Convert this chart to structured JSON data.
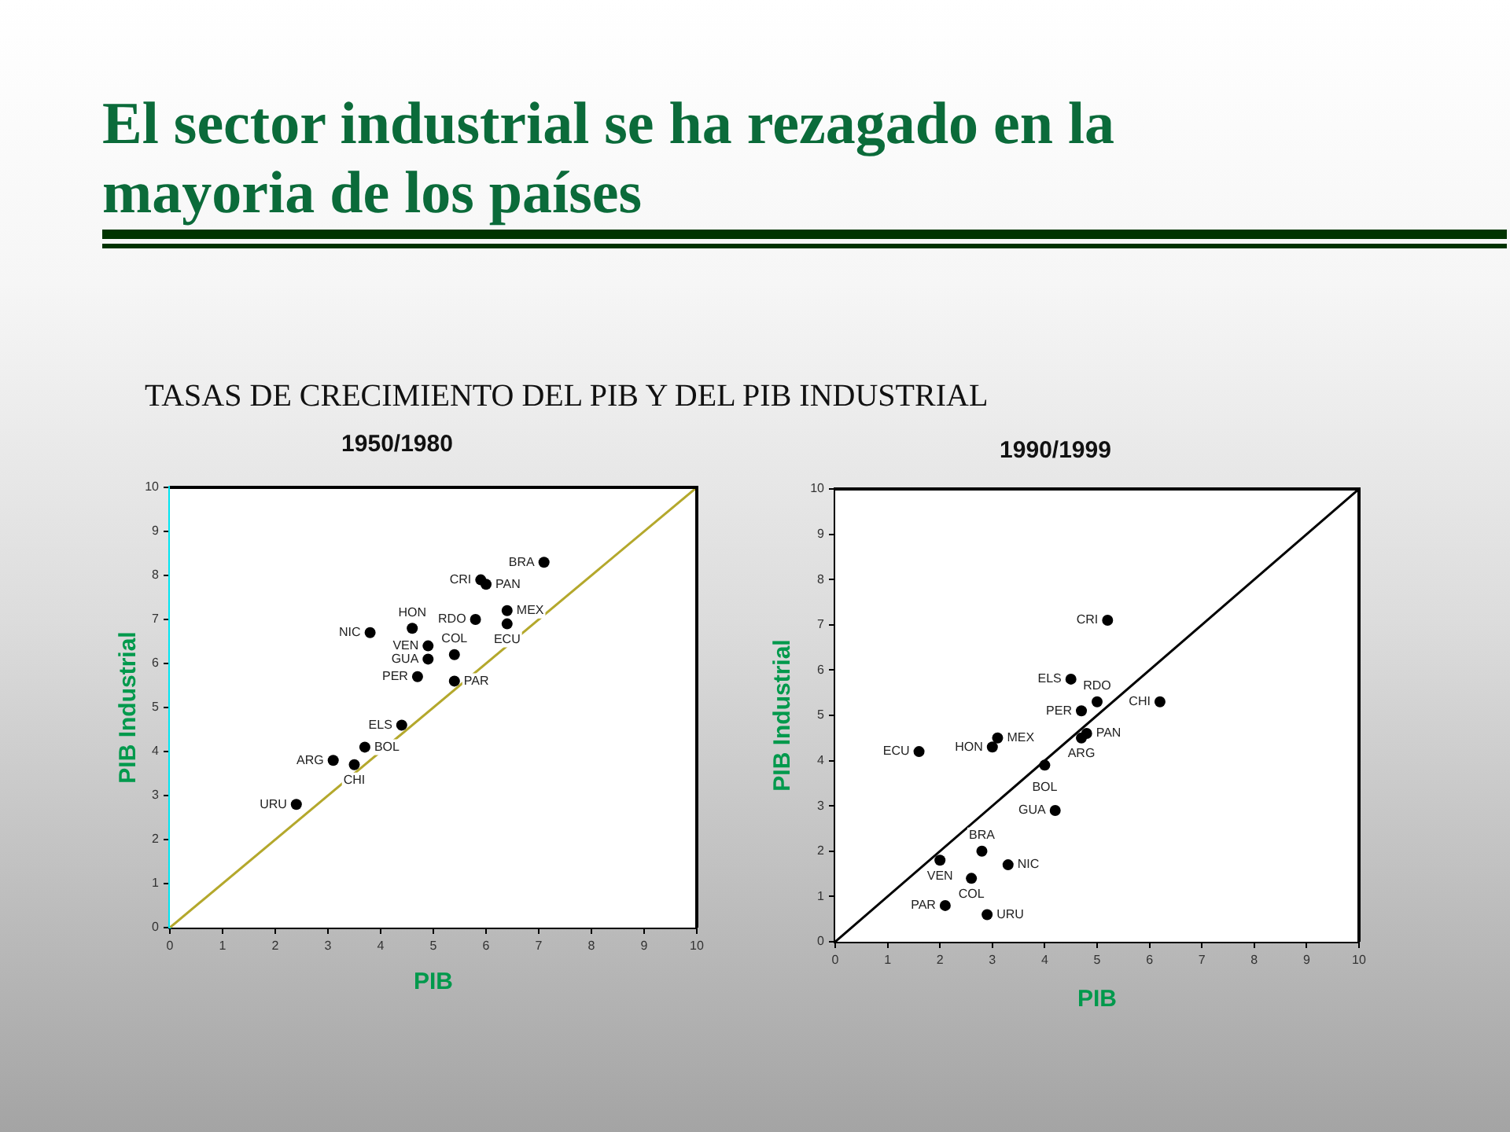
{
  "chart_data": [
    {
      "type": "other",
      "title": "El sector industrial se ha rezagado en la mayoria de los países",
      "subtitle": "TASAS DE CRECIMIENTO DEL PIB Y DEL PIB INDUSTRIAL"
    },
    {
      "type": "scatter",
      "title": "1950/1980",
      "xlabel": "PIB",
      "ylabel": "PIB Industrial",
      "xlim": [
        0,
        10
      ],
      "ylim": [
        0,
        10
      ],
      "xticks": [
        0,
        1,
        2,
        3,
        4,
        5,
        6,
        7,
        8,
        9,
        10
      ],
      "yticks": [
        0,
        1,
        2,
        3,
        4,
        5,
        6,
        7,
        8,
        9,
        10
      ],
      "series": [
        {
          "type": "scatter",
          "color": "#000000",
          "marker": "circle",
          "x": [
            7.1,
            5.9,
            6.0,
            6.4,
            6.4,
            5.8,
            4.6,
            3.8,
            4.9,
            5.4,
            4.9,
            4.7,
            5.4,
            4.4,
            3.7,
            3.1,
            3.5,
            2.4
          ],
          "values": [
            8.3,
            7.9,
            7.8,
            7.2,
            6.9,
            7.0,
            6.8,
            6.7,
            6.4,
            6.2,
            6.1,
            5.7,
            5.6,
            4.6,
            4.1,
            3.8,
            3.7,
            2.8
          ]
        },
        {
          "type": "line",
          "color": "#b4a82c",
          "marker": "none",
          "x": [
            0,
            10
          ],
          "values": [
            0,
            10
          ]
        }
      ],
      "annotations": [
        {
          "text": "BRA",
          "x": 7.1,
          "y": 8.3
        },
        {
          "text": "CRI",
          "x": 5.9,
          "y": 7.9
        },
        {
          "text": "PAN",
          "x": 6.0,
          "y": 7.8
        },
        {
          "text": "MEX",
          "x": 6.4,
          "y": 7.2
        },
        {
          "text": "ECU",
          "x": 6.4,
          "y": 6.9
        },
        {
          "text": "RDO",
          "x": 5.8,
          "y": 7.0
        },
        {
          "text": "HON",
          "x": 4.6,
          "y": 6.8
        },
        {
          "text": "NIC",
          "x": 3.8,
          "y": 6.7
        },
        {
          "text": "VEN",
          "x": 4.9,
          "y": 6.4
        },
        {
          "text": "COL",
          "x": 5.4,
          "y": 6.2
        },
        {
          "text": "GUA",
          "x": 4.9,
          "y": 6.1
        },
        {
          "text": "PER",
          "x": 4.7,
          "y": 5.7
        },
        {
          "text": "PAR",
          "x": 5.4,
          "y": 5.6
        },
        {
          "text": "ELS",
          "x": 4.4,
          "y": 4.6
        },
        {
          "text": "BOL",
          "x": 3.7,
          "y": 4.1
        },
        {
          "text": "ARG",
          "x": 3.1,
          "y": 3.8
        },
        {
          "text": "CHI",
          "x": 3.5,
          "y": 3.7
        },
        {
          "text": "URU",
          "x": 2.4,
          "y": 2.8
        }
      ]
    },
    {
      "type": "scatter",
      "title": "1990/1999",
      "xlabel": "PIB",
      "ylabel": "PIB Industrial",
      "xlim": [
        0,
        10
      ],
      "ylim": [
        0,
        10
      ],
      "xticks": [
        0,
        1,
        2,
        3,
        4,
        5,
        6,
        7,
        8,
        9,
        10
      ],
      "yticks": [
        0,
        1,
        2,
        3,
        4,
        5,
        6,
        7,
        8,
        9,
        10
      ],
      "series": [
        {
          "type": "scatter",
          "color": "#000000",
          "marker": "circle",
          "x": [
            5.2,
            4.5,
            5.0,
            4.7,
            6.2,
            3.1,
            4.8,
            4.7,
            1.6,
            3.0,
            4.0,
            4.2,
            2.8,
            2.0,
            3.3,
            2.6,
            2.1,
            2.9
          ],
          "values": [
            7.1,
            5.8,
            5.3,
            5.1,
            5.3,
            4.5,
            4.6,
            4.5,
            4.2,
            4.3,
            3.9,
            2.9,
            2.0,
            1.8,
            1.7,
            1.4,
            0.8,
            0.6
          ]
        },
        {
          "type": "line",
          "color": "#000000",
          "marker": "none",
          "x": [
            0,
            10
          ],
          "values": [
            0,
            10
          ]
        }
      ],
      "annotations": [
        {
          "text": "CRI",
          "x": 5.2,
          "y": 7.1
        },
        {
          "text": "ELS",
          "x": 4.5,
          "y": 5.8
        },
        {
          "text": "RDO",
          "x": 5.0,
          "y": 5.3
        },
        {
          "text": "PER",
          "x": 4.7,
          "y": 5.1
        },
        {
          "text": "CHI",
          "x": 6.2,
          "y": 5.3
        },
        {
          "text": "MEX",
          "x": 3.1,
          "y": 4.5
        },
        {
          "text": "PAN",
          "x": 4.8,
          "y": 4.6
        },
        {
          "text": "ARG",
          "x": 4.7,
          "y": 4.5
        },
        {
          "text": "ECU",
          "x": 1.6,
          "y": 4.2
        },
        {
          "text": "HON",
          "x": 3.0,
          "y": 4.3
        },
        {
          "text": "BOL",
          "x": 4.0,
          "y": 3.9
        },
        {
          "text": "GUA",
          "x": 4.2,
          "y": 2.9
        },
        {
          "text": "BRA",
          "x": 2.8,
          "y": 2.0
        },
        {
          "text": "VEN",
          "x": 2.0,
          "y": 1.8
        },
        {
          "text": "NIC",
          "x": 3.3,
          "y": 1.7
        },
        {
          "text": "COL",
          "x": 2.6,
          "y": 1.4
        },
        {
          "text": "PAR",
          "x": 2.1,
          "y": 0.8
        },
        {
          "text": "URU",
          "x": 2.9,
          "y": 0.6
        }
      ]
    }
  ]
}
